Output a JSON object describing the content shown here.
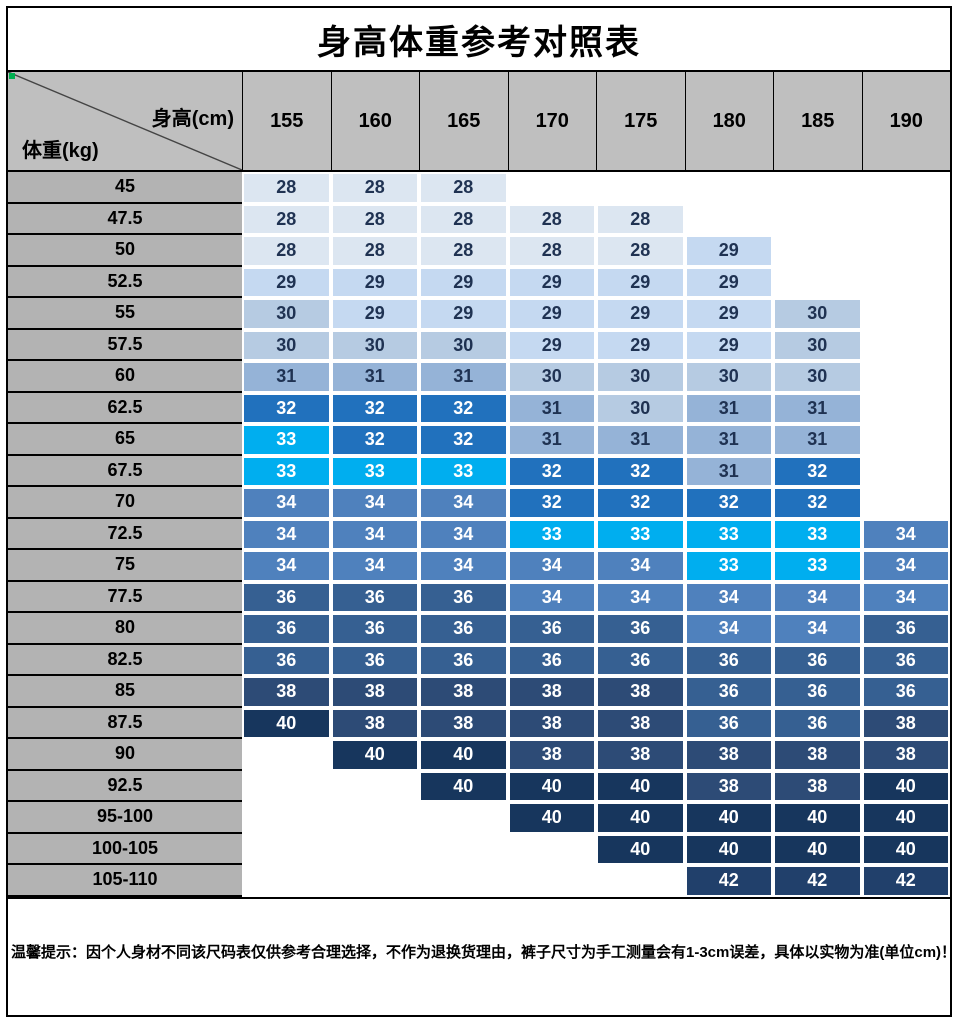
{
  "note": "温馨提示：因个人身材不同该尺码表仅供参考合理选择，不作为退换货理由，裤子尺寸为手工测量会有1-3cm误差，具体以实物为准(单位cm)！",
  "colors": {
    "value_colors": {
      "28": "#dce6f1",
      "29": "#c5d9f1",
      "30": "#b6cbe2",
      "31": "#95b3d7",
      "32": "#2171bd",
      "33": "#00aeef",
      "34": "#4f81bd",
      "36": "#366092",
      "38": "#2d4b76",
      "40": "#17365d",
      "42": "#21406b"
    },
    "dark_text_values": [
      "28",
      "29",
      "30",
      "31"
    ],
    "text_dark": "#1f3252",
    "text_light": "#ffffff",
    "header_bg": "#bfbfbf",
    "weight_bg": "#b3b3b3",
    "marker_green": "#00b050",
    "diagonal_line": "#444444"
  },
  "chart_data": {
    "type": "table",
    "title": "身高体重参考对照表",
    "col_header_label": "身高(cm)",
    "row_header_label": "体重(kg)",
    "columns": [
      "155",
      "160",
      "165",
      "170",
      "175",
      "180",
      "185",
      "190"
    ],
    "rows": [
      {
        "weight": "45",
        "values": [
          "28",
          "28",
          "28",
          "",
          "",
          "",
          "",
          ""
        ]
      },
      {
        "weight": "47.5",
        "values": [
          "28",
          "28",
          "28",
          "28",
          "28",
          "",
          "",
          ""
        ]
      },
      {
        "weight": "50",
        "values": [
          "28",
          "28",
          "28",
          "28",
          "28",
          "29",
          "",
          ""
        ]
      },
      {
        "weight": "52.5",
        "values": [
          "29",
          "29",
          "29",
          "29",
          "29",
          "29",
          "",
          ""
        ]
      },
      {
        "weight": "55",
        "values": [
          "30",
          "29",
          "29",
          "29",
          "29",
          "29",
          "30",
          ""
        ]
      },
      {
        "weight": "57.5",
        "values": [
          "30",
          "30",
          "30",
          "29",
          "29",
          "29",
          "30",
          ""
        ]
      },
      {
        "weight": "60",
        "values": [
          "31",
          "31",
          "31",
          "30",
          "30",
          "30",
          "30",
          ""
        ]
      },
      {
        "weight": "62.5",
        "values": [
          "32",
          "32",
          "32",
          "31",
          "30",
          "31",
          "31",
          ""
        ]
      },
      {
        "weight": "65",
        "values": [
          "33",
          "32",
          "32",
          "31",
          "31",
          "31",
          "31",
          ""
        ]
      },
      {
        "weight": "67.5",
        "values": [
          "33",
          "33",
          "33",
          "32",
          "32",
          "31",
          "32",
          ""
        ]
      },
      {
        "weight": "70",
        "values": [
          "34",
          "34",
          "34",
          "32",
          "32",
          "32",
          "32",
          ""
        ]
      },
      {
        "weight": "72.5",
        "values": [
          "34",
          "34",
          "34",
          "33",
          "33",
          "33",
          "33",
          "34"
        ]
      },
      {
        "weight": "75",
        "values": [
          "34",
          "34",
          "34",
          "34",
          "34",
          "33",
          "33",
          "34"
        ]
      },
      {
        "weight": "77.5",
        "values": [
          "36",
          "36",
          "36",
          "34",
          "34",
          "34",
          "34",
          "34"
        ]
      },
      {
        "weight": "80",
        "values": [
          "36",
          "36",
          "36",
          "36",
          "36",
          "34",
          "34",
          "36"
        ]
      },
      {
        "weight": "82.5",
        "values": [
          "36",
          "36",
          "36",
          "36",
          "36",
          "36",
          "36",
          "36"
        ]
      },
      {
        "weight": "85",
        "values": [
          "38",
          "38",
          "38",
          "38",
          "38",
          "36",
          "36",
          "36"
        ]
      },
      {
        "weight": "87.5",
        "values": [
          "40",
          "38",
          "38",
          "38",
          "38",
          "36",
          "36",
          "38"
        ]
      },
      {
        "weight": "90",
        "values": [
          "",
          "40",
          "40",
          "38",
          "38",
          "38",
          "38",
          "38"
        ]
      },
      {
        "weight": "92.5",
        "values": [
          "",
          "",
          "40",
          "40",
          "40",
          "38",
          "38",
          "40"
        ]
      },
      {
        "weight": "95-100",
        "values": [
          "",
          "",
          "",
          "40",
          "40",
          "40",
          "40",
          "40"
        ]
      },
      {
        "weight": "100-105",
        "values": [
          "",
          "",
          "",
          "",
          "40",
          "40",
          "40",
          "40"
        ]
      },
      {
        "weight": "105-110",
        "values": [
          "",
          "",
          "",
          "",
          "",
          "42",
          "42",
          "42"
        ]
      }
    ]
  }
}
